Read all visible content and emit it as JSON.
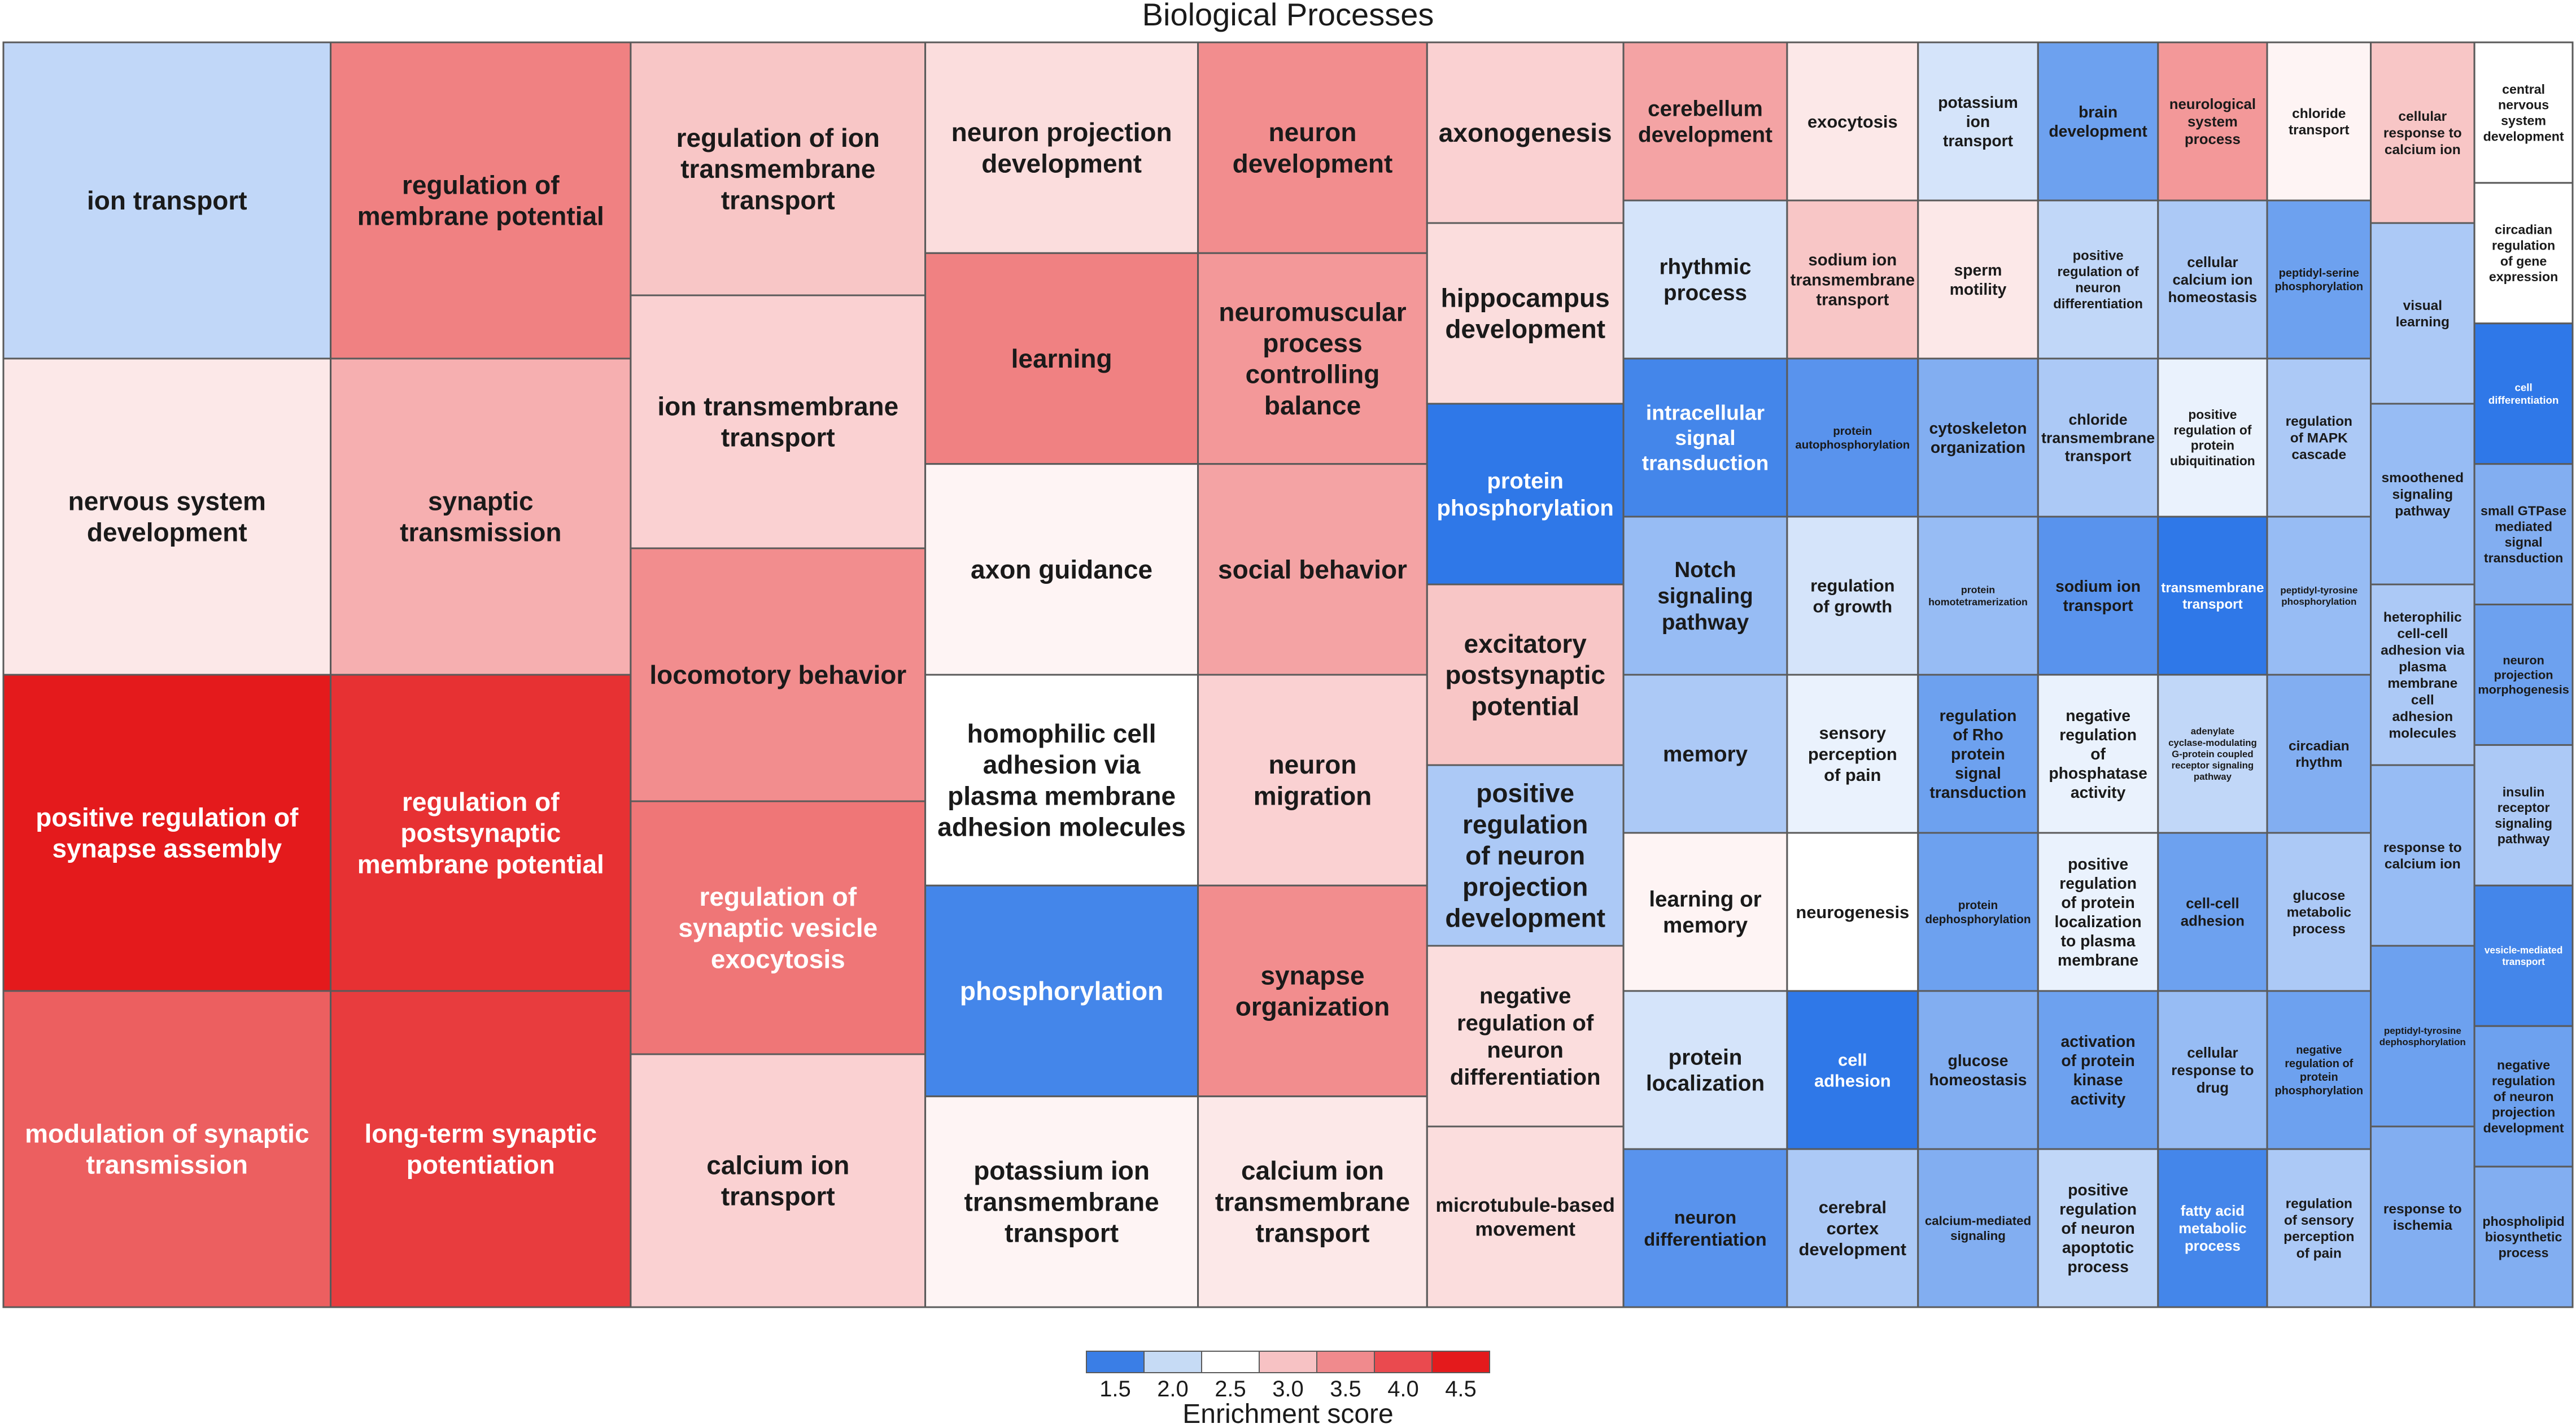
{
  "chart_data": {
    "type": "treemap",
    "title": "Biological Processes",
    "legend": {
      "title": "Enrichment score",
      "ticks": [
        "1.5",
        "2.0",
        "2.5",
        "3.0",
        "3.5",
        "4.0",
        "4.5"
      ],
      "colors": [
        "#3a7ee6",
        "#c6dbf5",
        "#ffffff",
        "#f7c2c4",
        "#f08a8d",
        "#ea4a4f",
        "#e41a1c"
      ],
      "placement": "bottom-center"
    },
    "scale": {
      "min": 1.5,
      "mid": 2.5,
      "max": 4.5,
      "low_color": "#2f78e8",
      "mid_color": "#ffffff",
      "high_color": "#e41a1c"
    },
    "columns": [
      {
        "size": 0.6,
        "items": [
          {
            "label": "ion transport",
            "score": 2.2
          },
          {
            "label": "nervous system development",
            "score": 2.7
          },
          {
            "label": "positive regulation of synapse assembly",
            "score": 4.5
          },
          {
            "label": "modulation of synaptic transmission",
            "score": 3.9
          }
        ]
      },
      {
        "size": 0.55,
        "items": [
          {
            "label": "regulation of membrane potential",
            "score": 3.6
          },
          {
            "label": "synaptic transmission",
            "score": 3.2
          },
          {
            "label": "regulation of postsynaptic membrane potential",
            "score": 4.3
          },
          {
            "label": "long-term synaptic potentiation",
            "score": 4.2
          }
        ]
      },
      {
        "size": 0.54,
        "items": [
          {
            "label": "regulation of ion transmembrane transport",
            "score": 3.0
          },
          {
            "label": "ion transmembrane transport",
            "score": 2.9
          },
          {
            "label": "locomotory behavior",
            "score": 3.5
          },
          {
            "label": "regulation of synaptic vesicle exocytosis",
            "score": 3.7
          },
          {
            "label": "calcium ion transport",
            "score": 2.9
          }
        ]
      },
      {
        "size": 0.5,
        "items": [
          {
            "label": "neuron projection development",
            "score": 2.8
          },
          {
            "label": "learning",
            "score": 3.6
          },
          {
            "label": "axon guidance",
            "score": 2.6
          },
          {
            "label": "homophilic cell adhesion via plasma membrane adhesion molecules",
            "score": 2.5
          },
          {
            "label": "phosphorylation",
            "score": 1.6
          },
          {
            "label": "potassium ion transmembrane transport",
            "score": 2.6
          }
        ]
      },
      {
        "size": 0.42,
        "items": [
          {
            "label": "neuron development",
            "score": 3.5
          },
          {
            "label": "neuromuscular process controlling balance",
            "score": 3.4
          },
          {
            "label": "social behavior",
            "score": 3.3
          },
          {
            "label": "neuron migration",
            "score": 2.9
          },
          {
            "label": "synapse organization",
            "score": 3.5
          },
          {
            "label": "calcium ion transmembrane transport",
            "score": 2.7
          }
        ]
      },
      {
        "size": 0.36,
        "items": [
          {
            "label": "axonogenesis",
            "score": 2.9
          },
          {
            "label": "hippocampus development",
            "score": 2.8
          },
          {
            "label": "protein phosphorylation",
            "score": 1.5
          },
          {
            "label": "excitatory postsynaptic potential",
            "score": 3.0
          },
          {
            "label": "positive regulation of neuron projection development",
            "score": 2.1
          },
          {
            "label": "negative regulation of neuron differentiation",
            "score": 2.8
          },
          {
            "label": "microtubule-based movement",
            "score": 2.8
          }
        ]
      },
      {
        "size": 0.3,
        "items": [
          {
            "label": "cerebellum development",
            "score": 3.3
          },
          {
            "label": "rhythmic process",
            "score": 2.3
          },
          {
            "label": "intracellular signal transduction",
            "score": 1.6
          },
          {
            "label": "Notch signaling pathway",
            "score": 2.0
          },
          {
            "label": "memory",
            "score": 2.1
          },
          {
            "label": "learning or memory",
            "score": 2.6
          },
          {
            "label": "protein localization",
            "score": 2.3
          },
          {
            "label": "neuron differentiation",
            "score": 1.7
          }
        ]
      },
      {
        "size": 0.24,
        "items": [
          {
            "label": "exocytosis",
            "score": 2.7
          },
          {
            "label": "sodium ion transmembrane transport",
            "score": 3.0
          },
          {
            "label": "protein autophosphorylation",
            "score": 1.7
          },
          {
            "label": "regulation of growth",
            "score": 2.3
          },
          {
            "label": "sensory perception of pain",
            "score": 2.4
          },
          {
            "label": "neurogenesis",
            "score": 2.5
          },
          {
            "label": "cell adhesion",
            "score": 1.5
          },
          {
            "label": "cerebral cortex development",
            "score": 2.1
          }
        ]
      },
      {
        "size": 0.22,
        "items": [
          {
            "label": "potassium ion transport",
            "score": 2.3
          },
          {
            "label": "sperm motility",
            "score": 2.7
          },
          {
            "label": "cytoskeleton organization",
            "score": 1.9
          },
          {
            "label": "protein homotetramerization",
            "score": 2.0
          },
          {
            "label": "regulation of Rho protein signal transduction",
            "score": 1.8
          },
          {
            "label": "protein dephosphorylation",
            "score": 1.8
          },
          {
            "label": "glucose homeostasis",
            "score": 1.9
          },
          {
            "label": "calcium-mediated signaling",
            "score": 1.9
          }
        ]
      },
      {
        "size": 0.22,
        "items": [
          {
            "label": "brain development",
            "score": 1.8
          },
          {
            "label": "positive regulation of neuron differentiation",
            "score": 2.2
          },
          {
            "label": "chloride transmembrane transport",
            "score": 2.1
          },
          {
            "label": "sodium ion transport",
            "score": 1.7
          },
          {
            "label": "negative regulation of phosphatase activity",
            "score": 2.4
          },
          {
            "label": "positive regulation of protein localization to plasma membrane",
            "score": 2.4
          },
          {
            "label": "activation of protein kinase activity",
            "score": 1.8
          },
          {
            "label": "positive regulation of neuron apoptotic process",
            "score": 2.2
          }
        ]
      },
      {
        "size": 0.2,
        "items": [
          {
            "label": "neurological system process",
            "score": 3.4
          },
          {
            "label": "cellular calcium ion homeostasis",
            "score": 2.1
          },
          {
            "label": "positive regulation of protein ubiquitination",
            "score": 2.4
          },
          {
            "label": "transmembrane transport",
            "score": 1.5
          },
          {
            "label": "adenylate cyclase-modulating G-protein coupled receptor signaling pathway",
            "score": 2.2
          },
          {
            "label": "cell-cell adhesion",
            "score": 1.8
          },
          {
            "label": "cellular response to drug",
            "score": 2.0
          },
          {
            "label": "fatty acid metabolic process",
            "score": 1.6
          }
        ]
      },
      {
        "size": 0.19,
        "items": [
          {
            "label": "chloride transport",
            "score": 2.6
          },
          {
            "label": "peptidyl-serine phosphorylation",
            "score": 1.8
          },
          {
            "label": "regulation of MAPK cascade",
            "score": 2.1
          },
          {
            "label": "peptidyl-tyrosine phosphorylation",
            "score": 2.0
          },
          {
            "label": "circadian rhythm",
            "score": 1.9
          },
          {
            "label": "glucose metabolic process",
            "score": 2.1
          },
          {
            "label": "negative regulation of protein phosphorylation",
            "score": 1.8
          },
          {
            "label": "regulation of sensory perception of pain",
            "score": 2.1
          }
        ]
      },
      {
        "size": 0.19,
        "items": [
          {
            "label": "cellular response to calcium ion",
            "score": 3.0
          },
          {
            "label": "visual learning",
            "score": 2.1
          },
          {
            "label": "smoothened signaling pathway",
            "score": 2.0
          },
          {
            "label": "heterophilic cell-cell adhesion via plasma membrane cell adhesion molecules",
            "score": 2.1
          },
          {
            "label": "response to calcium ion",
            "score": 2.0
          },
          {
            "label": "peptidyl-tyrosine dephosphorylation",
            "score": 1.8
          },
          {
            "label": "response to ischemia",
            "score": 1.9
          }
        ]
      },
      {
        "size": 0.18,
        "items": [
          {
            "label": "central nervous system development",
            "score": 2.5
          },
          {
            "label": "circadian regulation of gene expression",
            "score": 2.5
          },
          {
            "label": "cell differentiation",
            "score": 1.5
          },
          {
            "label": "small GTPase mediated signal transduction",
            "score": 1.9
          },
          {
            "label": "neuron projection morphogenesis",
            "score": 1.8
          },
          {
            "label": "insulin receptor signaling pathway",
            "score": 2.1
          },
          {
            "label": "vesicle-mediated transport",
            "score": 1.6
          },
          {
            "label": "negative regulation of neuron projection development",
            "score": 1.8
          },
          {
            "label": "phospholipid biosynthetic process",
            "score": 1.9
          }
        ]
      }
    ]
  }
}
